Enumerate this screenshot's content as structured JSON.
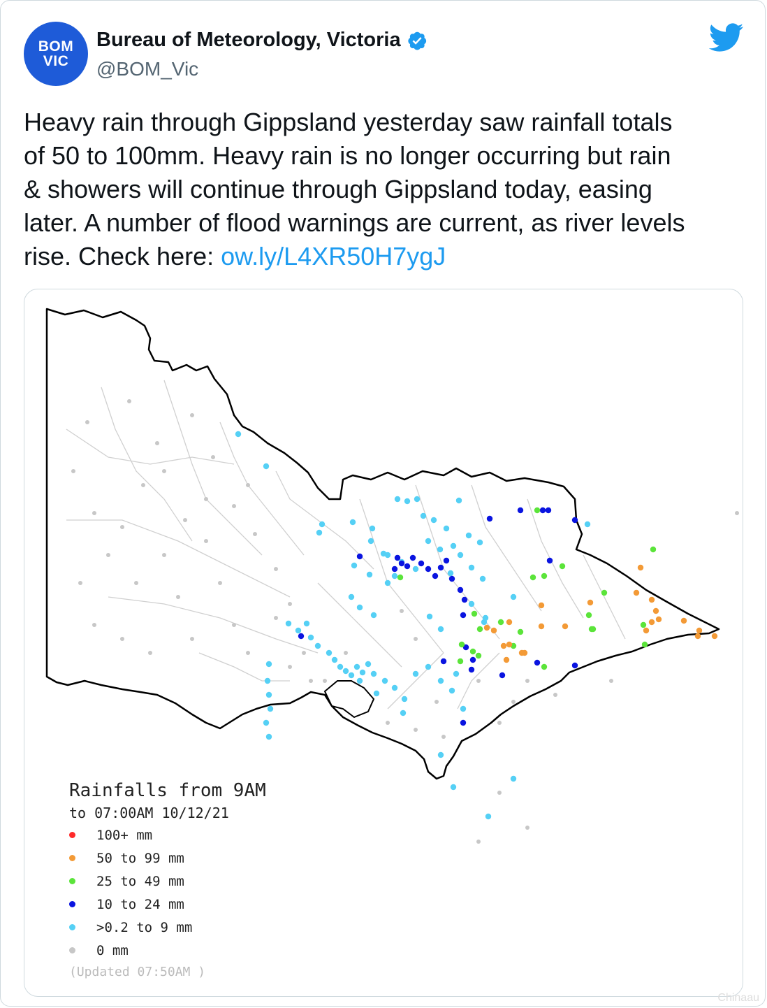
{
  "author": {
    "avatar_line1": "BOM",
    "avatar_line2": "VIC",
    "name": "Bureau of Meteorology, Victoria",
    "handle": "@BOM_Vic",
    "avatar_color": "#1e5bd8",
    "verified_icon": "verified-badge-icon"
  },
  "platform_icon": "twitter-bird-icon",
  "tweet": {
    "text": "Heavy rain through Gippsland yesterday saw rainfall totals\nof 50 to 100mm. Heavy rain is no longer occurring but rain\n& showers will continue through Gippsland today, easing\nlater. A number of flood warnings are current, as river levels\nrise. Check here: ",
    "link": "ow.ly/L4XR50H7ygJ",
    "link_color": "#1d9bf0"
  },
  "map": {
    "legend_title": "Rainfalls from 9AM",
    "legend_subtitle": "to 07:00AM 10/12/21",
    "categories": [
      {
        "label": "100+ mm",
        "color": "#ff2a2a"
      },
      {
        "label": "50  to 99 mm",
        "color": "#f39a36"
      },
      {
        "label": "25  to 49 mm",
        "color": "#5be43a"
      },
      {
        "label": "10  to 24 mm",
        "color": "#0a14e0"
      },
      {
        "label": ">0.2 to 9 mm",
        "color": "#55d0f5"
      },
      {
        "label": "0 mm",
        "color": "#c7c7c7"
      }
    ],
    "updated": "(Updated 07:50AM  )"
  },
  "watermark": "Chinaau"
}
